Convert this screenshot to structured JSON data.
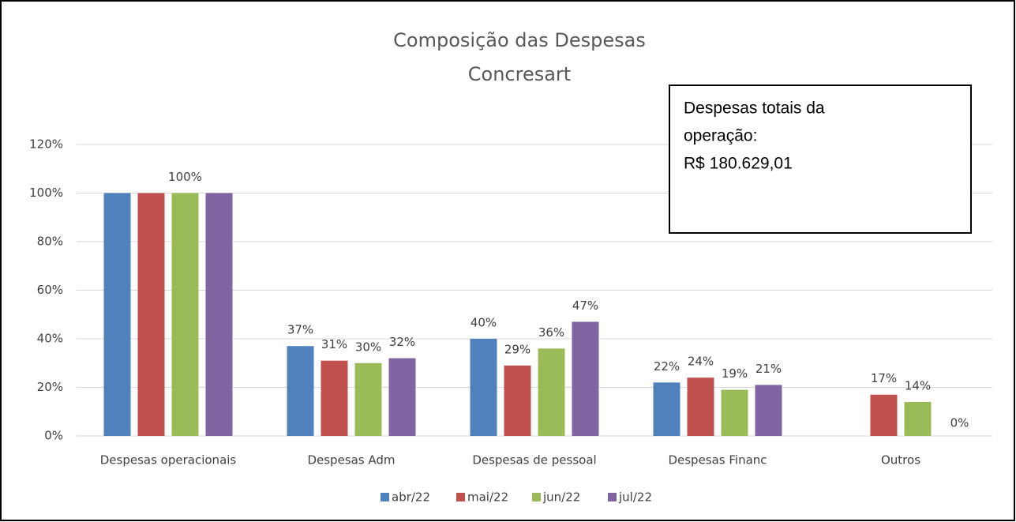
{
  "chart_data": {
    "type": "bar",
    "title_lines": [
      "Composição das Despesas",
      "Concresart"
    ],
    "annotation_lines": [
      "Despesas totais da",
      "operação:",
      "R$ 180.629,01"
    ],
    "categories": [
      "Despesas operacionais",
      "Despesas Adm",
      "Despesas de pessoal",
      "Despesas Financ",
      "Outros"
    ],
    "series": [
      {
        "name": "abr/22",
        "color": "#4f81bd",
        "values": [
          100,
          37,
          40,
          22,
          null
        ],
        "value_labels": [
          null,
          "37%",
          "40%",
          "22%",
          null
        ]
      },
      {
        "name": "mai/22",
        "color": "#c0504d",
        "values": [
          100,
          31,
          29,
          24,
          17
        ],
        "value_labels": [
          null,
          "31%",
          "29%",
          "24%",
          "17%"
        ]
      },
      {
        "name": "jun/22",
        "color": "#9bbb59",
        "values": [
          100,
          30,
          36,
          19,
          14
        ],
        "value_labels": [
          "100%",
          "30%",
          "36%",
          "19%",
          "14%"
        ]
      },
      {
        "name": "jul/22",
        "color": "#8064a2",
        "values": [
          100,
          32,
          47,
          21,
          0
        ],
        "value_labels": [
          null,
          "32%",
          "47%",
          "21%",
          "0%"
        ]
      }
    ],
    "ylim": [
      0,
      120
    ],
    "yticks": [
      {
        "value": 0,
        "label": "0%"
      },
      {
        "value": 20,
        "label": "20%"
      },
      {
        "value": 40,
        "label": "40%"
      },
      {
        "value": 60,
        "label": "60%"
      },
      {
        "value": 80,
        "label": "80%"
      },
      {
        "value": 100,
        "label": "100%"
      },
      {
        "value": 120,
        "label": "120%"
      }
    ],
    "grid": true,
    "legend": "bottom"
  }
}
